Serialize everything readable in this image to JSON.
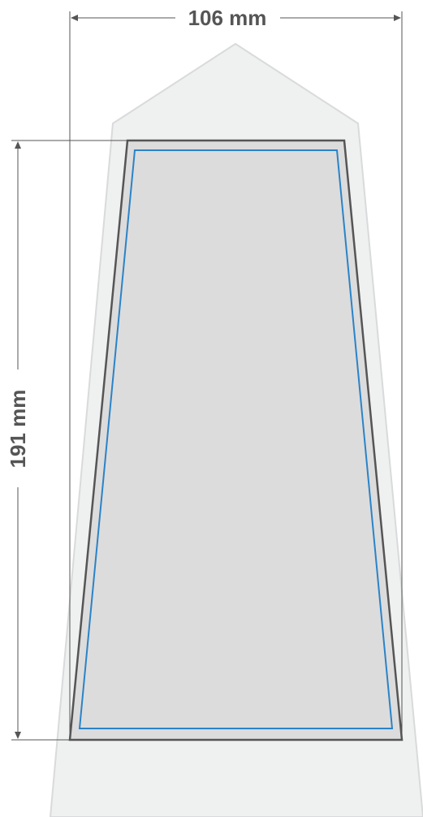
{
  "dimensions": {
    "width_label": "106 mm",
    "height_label": "191 mm"
  },
  "colors": {
    "background_shape": "#eff0f0",
    "background_outline": "#d9dadb",
    "product_fill": "#dcdcdd",
    "cut_line": "#555555",
    "safe_line": "#2b83c6",
    "dimension_line": "#555555"
  }
}
